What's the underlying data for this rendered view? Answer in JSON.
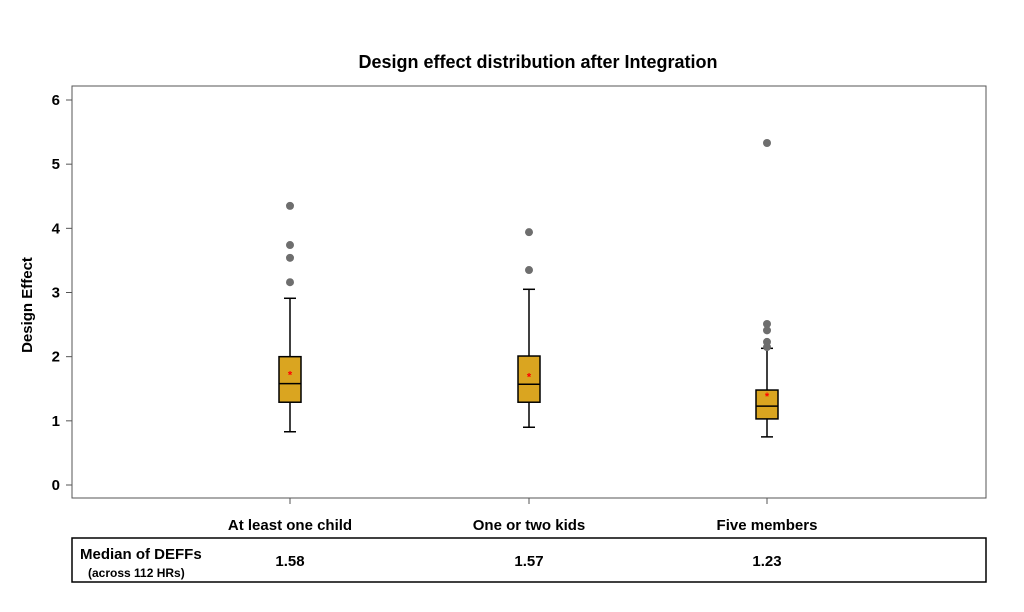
{
  "chart_data": {
    "type": "box",
    "title": "Design effect distribution after Integration",
    "xlabel": "",
    "ylabel": "Design Effect",
    "ylim": [
      0,
      6
    ],
    "yticks": [
      0,
      1,
      2,
      3,
      4,
      5,
      6
    ],
    "grid": false,
    "categories": [
      "At least one child",
      "One or two kids",
      "Five members"
    ],
    "series": [
      {
        "name": "At least one child",
        "whisker_low": 0.83,
        "q1": 1.29,
        "median": 1.58,
        "q3": 2.0,
        "whisker_high": 2.91,
        "mean": 1.74,
        "outliers": [
          3.16,
          3.54,
          3.74,
          4.35
        ]
      },
      {
        "name": "One or two kids",
        "whisker_low": 0.9,
        "q1": 1.29,
        "median": 1.57,
        "q3": 2.01,
        "whisker_high": 3.05,
        "mean": 1.71,
        "outliers": [
          3.35,
          3.94
        ]
      },
      {
        "name": "Five members",
        "whisker_low": 0.75,
        "q1": 1.03,
        "median": 1.23,
        "q3": 1.48,
        "whisker_high": 2.13,
        "mean": 1.4,
        "outliers": [
          2.15,
          2.23,
          2.41,
          2.51,
          5.33
        ]
      }
    ],
    "colors": {
      "box": "#DAA520",
      "outlier": "#6e6e6e",
      "mean": "#ff0000"
    }
  },
  "table": {
    "row_label": "Median of DEFFs",
    "row_sublabel": "(across 112 HRs)",
    "values": [
      "1.58",
      "1.57",
      "1.23"
    ]
  }
}
